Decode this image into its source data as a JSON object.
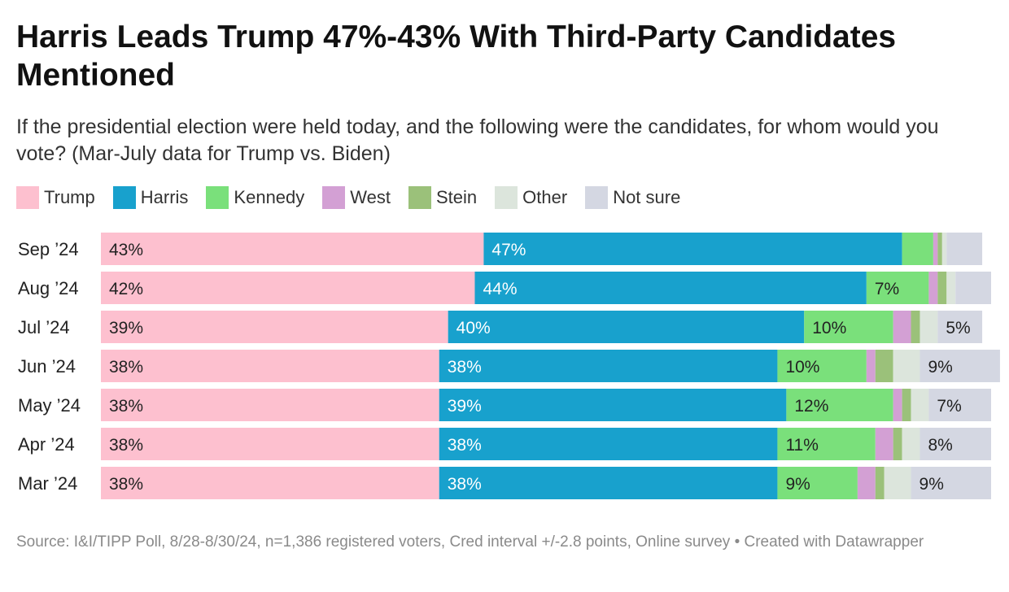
{
  "title": "Harris Leads Trump 47%-43% With Third-Party Candidates Mentioned",
  "subtitle": "If the presidential election were held today, and the following were the candidates, for whom would you vote? (Mar-July data for Trump vs. Biden)",
  "source": "Source: I&I/TIPP Poll, 8/28-8/30/24, n=1,386 registered voters, Cred interval +/-2.8 points, Online survey • Created with Datawrapper",
  "legend": [
    {
      "label": "Trump",
      "color": "#fdc0cf"
    },
    {
      "label": "Harris",
      "color": "#18a1cd"
    },
    {
      "label": "Kennedy",
      "color": "#7ae07b"
    },
    {
      "label": "West",
      "color": "#d3a0d4"
    },
    {
      "label": "Stein",
      "color": "#9bc17a"
    },
    {
      "label": "Other",
      "color": "#dce5dc"
    },
    {
      "label": "Not sure",
      "color": "#d4d7e2"
    }
  ],
  "chart_data": {
    "type": "bar",
    "orientation": "horizontal",
    "stacked": true,
    "categories": [
      "Sep ’24",
      "Aug ’24",
      "Jul ’24",
      "Jun ’24",
      "May ’24",
      "Apr ’24",
      "Mar ’24"
    ],
    "series": [
      {
        "name": "Trump",
        "color": "#fdc0cf",
        "values": [
          43,
          42,
          39,
          38,
          38,
          38,
          38
        ],
        "labels": [
          "43%",
          "42%",
          "39%",
          "38%",
          "38%",
          "38%",
          "38%"
        ]
      },
      {
        "name": "Harris",
        "color": "#18a1cd",
        "values": [
          47,
          44,
          40,
          38,
          39,
          38,
          38
        ],
        "labels": [
          "47%",
          "44%",
          "40%",
          "38%",
          "39%",
          "38%",
          "38%"
        ]
      },
      {
        "name": "Kennedy",
        "color": "#7ae07b",
        "values": [
          3.5,
          7,
          10,
          10,
          12,
          11,
          9
        ],
        "labels": [
          "",
          "7%",
          "10%",
          "10%",
          "12%",
          "11%",
          "9%"
        ]
      },
      {
        "name": "West",
        "color": "#d3a0d4",
        "values": [
          0.5,
          1,
          2,
          1,
          1,
          2,
          2
        ],
        "labels": [
          "",
          "",
          "",
          "",
          "",
          "",
          ""
        ]
      },
      {
        "name": "Stein",
        "color": "#9bc17a",
        "values": [
          0.5,
          1,
          1,
          2,
          1,
          1,
          1
        ],
        "labels": [
          "",
          "",
          "",
          "",
          "",
          "",
          ""
        ]
      },
      {
        "name": "Other",
        "color": "#dce5dc",
        "values": [
          0.5,
          1,
          2,
          3,
          2,
          2,
          3
        ],
        "labels": [
          "",
          "",
          "",
          "",
          "",
          "",
          ""
        ]
      },
      {
        "name": "Not sure",
        "color": "#d4d7e2",
        "values": [
          4,
          4,
          5,
          9,
          7,
          8,
          9
        ],
        "labels": [
          "",
          "",
          "5%",
          "9%",
          "7%",
          "8%",
          "9%"
        ]
      }
    ],
    "xlim": [
      0,
      100
    ],
    "grid": false
  }
}
